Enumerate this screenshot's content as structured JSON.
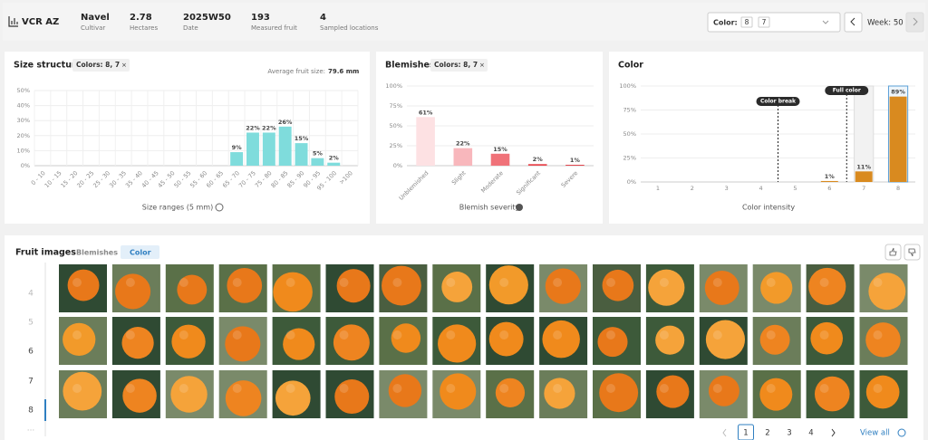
{
  "header": {
    "farm": "VCR AZ",
    "stats": [
      {
        "value": "Navel",
        "label": "Cultivar"
      },
      {
        "value": "2.78",
        "label": "Hectares"
      },
      {
        "value": "2025W50",
        "label": "Date"
      },
      {
        "value": "193",
        "label": "Measured fruit"
      },
      {
        "value": "4",
        "label": "Sampled locations"
      }
    ],
    "color_filter": {
      "label": "Color:",
      "chips": [
        "8",
        "7"
      ]
    },
    "week": "Week: 50"
  },
  "size_structure": {
    "title": "Size structure",
    "filter": "Colors: 8, 7",
    "average_label": "Average fruit size:",
    "average_value": "79.6 mm",
    "chart_data": {
      "type": "bar",
      "categories": [
        "0 - 10",
        "10 - 15",
        "15 - 20",
        "20 - 25",
        "25 - 30",
        "30 - 35",
        "35 - 40",
        "40 - 45",
        "45 - 50",
        "50 - 55",
        "55 - 60",
        "60 - 65",
        "65 - 70",
        "70 - 75",
        "75 - 80",
        "80 - 85",
        "85 - 90",
        "90 - 95",
        "95 - 100",
        ">100"
      ],
      "values": [
        0,
        0,
        0,
        0,
        0,
        0,
        0,
        0,
        0,
        0,
        0,
        0,
        9,
        22,
        22,
        26,
        15,
        5,
        2,
        0
      ],
      "value_labels": [
        null,
        null,
        null,
        null,
        null,
        null,
        null,
        null,
        null,
        null,
        null,
        null,
        "9%",
        "22%",
        "22%",
        "26%",
        "15%",
        "5%",
        "2%",
        null
      ],
      "color": "#7fdcdc",
      "xlabel": "Size ranges (5 mm)",
      "ylim": [
        0,
        50
      ],
      "yticks": [
        {
          "value": 0,
          "label": "0%"
        },
        {
          "value": 10,
          "label": "10%"
        },
        {
          "value": 20,
          "label": "20%"
        },
        {
          "value": 30,
          "label": "30%"
        },
        {
          "value": 40,
          "label": "40%"
        },
        {
          "value": 50,
          "label": "50%"
        }
      ],
      "grid": true
    }
  },
  "blemishes": {
    "title": "Blemishes",
    "filter": "Colors: 8, 7",
    "chart_data": {
      "type": "bar",
      "categories": [
        "Unblemished",
        "Slight",
        "Moderate",
        "Significant",
        "Severe"
      ],
      "values": [
        61,
        22,
        15,
        2,
        1
      ],
      "value_labels": [
        "61%",
        "22%",
        "15%",
        "2%",
        "1%"
      ],
      "colors": [
        "#fde1e3",
        "#f8b7bc",
        "#f07279",
        "#e8484f",
        "#df2e37"
      ],
      "xlabel": "Blemish severity",
      "ylim": [
        0,
        100
      ],
      "yticks": [
        {
          "value": 0,
          "label": "0%"
        },
        {
          "value": 25,
          "label": "25%"
        },
        {
          "value": 50,
          "label": "50%"
        },
        {
          "value": 75,
          "label": "75%"
        },
        {
          "value": 100,
          "label": "100%"
        }
      ],
      "grid": true
    }
  },
  "color": {
    "title": "Color",
    "chart_data": {
      "type": "bar",
      "categories": [
        "1",
        "2",
        "3",
        "4",
        "5",
        "6",
        "7",
        "8"
      ],
      "values": [
        0,
        0,
        0,
        0,
        0,
        1,
        11,
        89
      ],
      "value_labels": [
        null,
        null,
        null,
        null,
        null,
        "1%",
        "11%",
        "89%"
      ],
      "color": "#d98a1f",
      "xlabel": "Color intensity",
      "ylim": [
        0,
        100
      ],
      "yticks": [
        {
          "value": 0,
          "label": "0%"
        },
        {
          "value": 25,
          "label": "25%"
        },
        {
          "value": 50,
          "label": "50%"
        },
        {
          "value": 75,
          "label": "75%"
        },
        {
          "value": 100,
          "label": "100%"
        }
      ],
      "grid": true,
      "annotations": [
        {
          "text": "Color break",
          "x": 4.5
        },
        {
          "text": "Full color",
          "x": 6.5
        }
      ]
    }
  },
  "fruit_images": {
    "title": "Fruit images",
    "tabs": [
      "Blemishes",
      "Color"
    ],
    "row_labels": [
      "4",
      "5",
      "6",
      "7",
      "8",
      "..."
    ],
    "pagination": {
      "pages": [
        "1",
        "2",
        "3",
        "4"
      ],
      "view_all": "View all"
    }
  }
}
